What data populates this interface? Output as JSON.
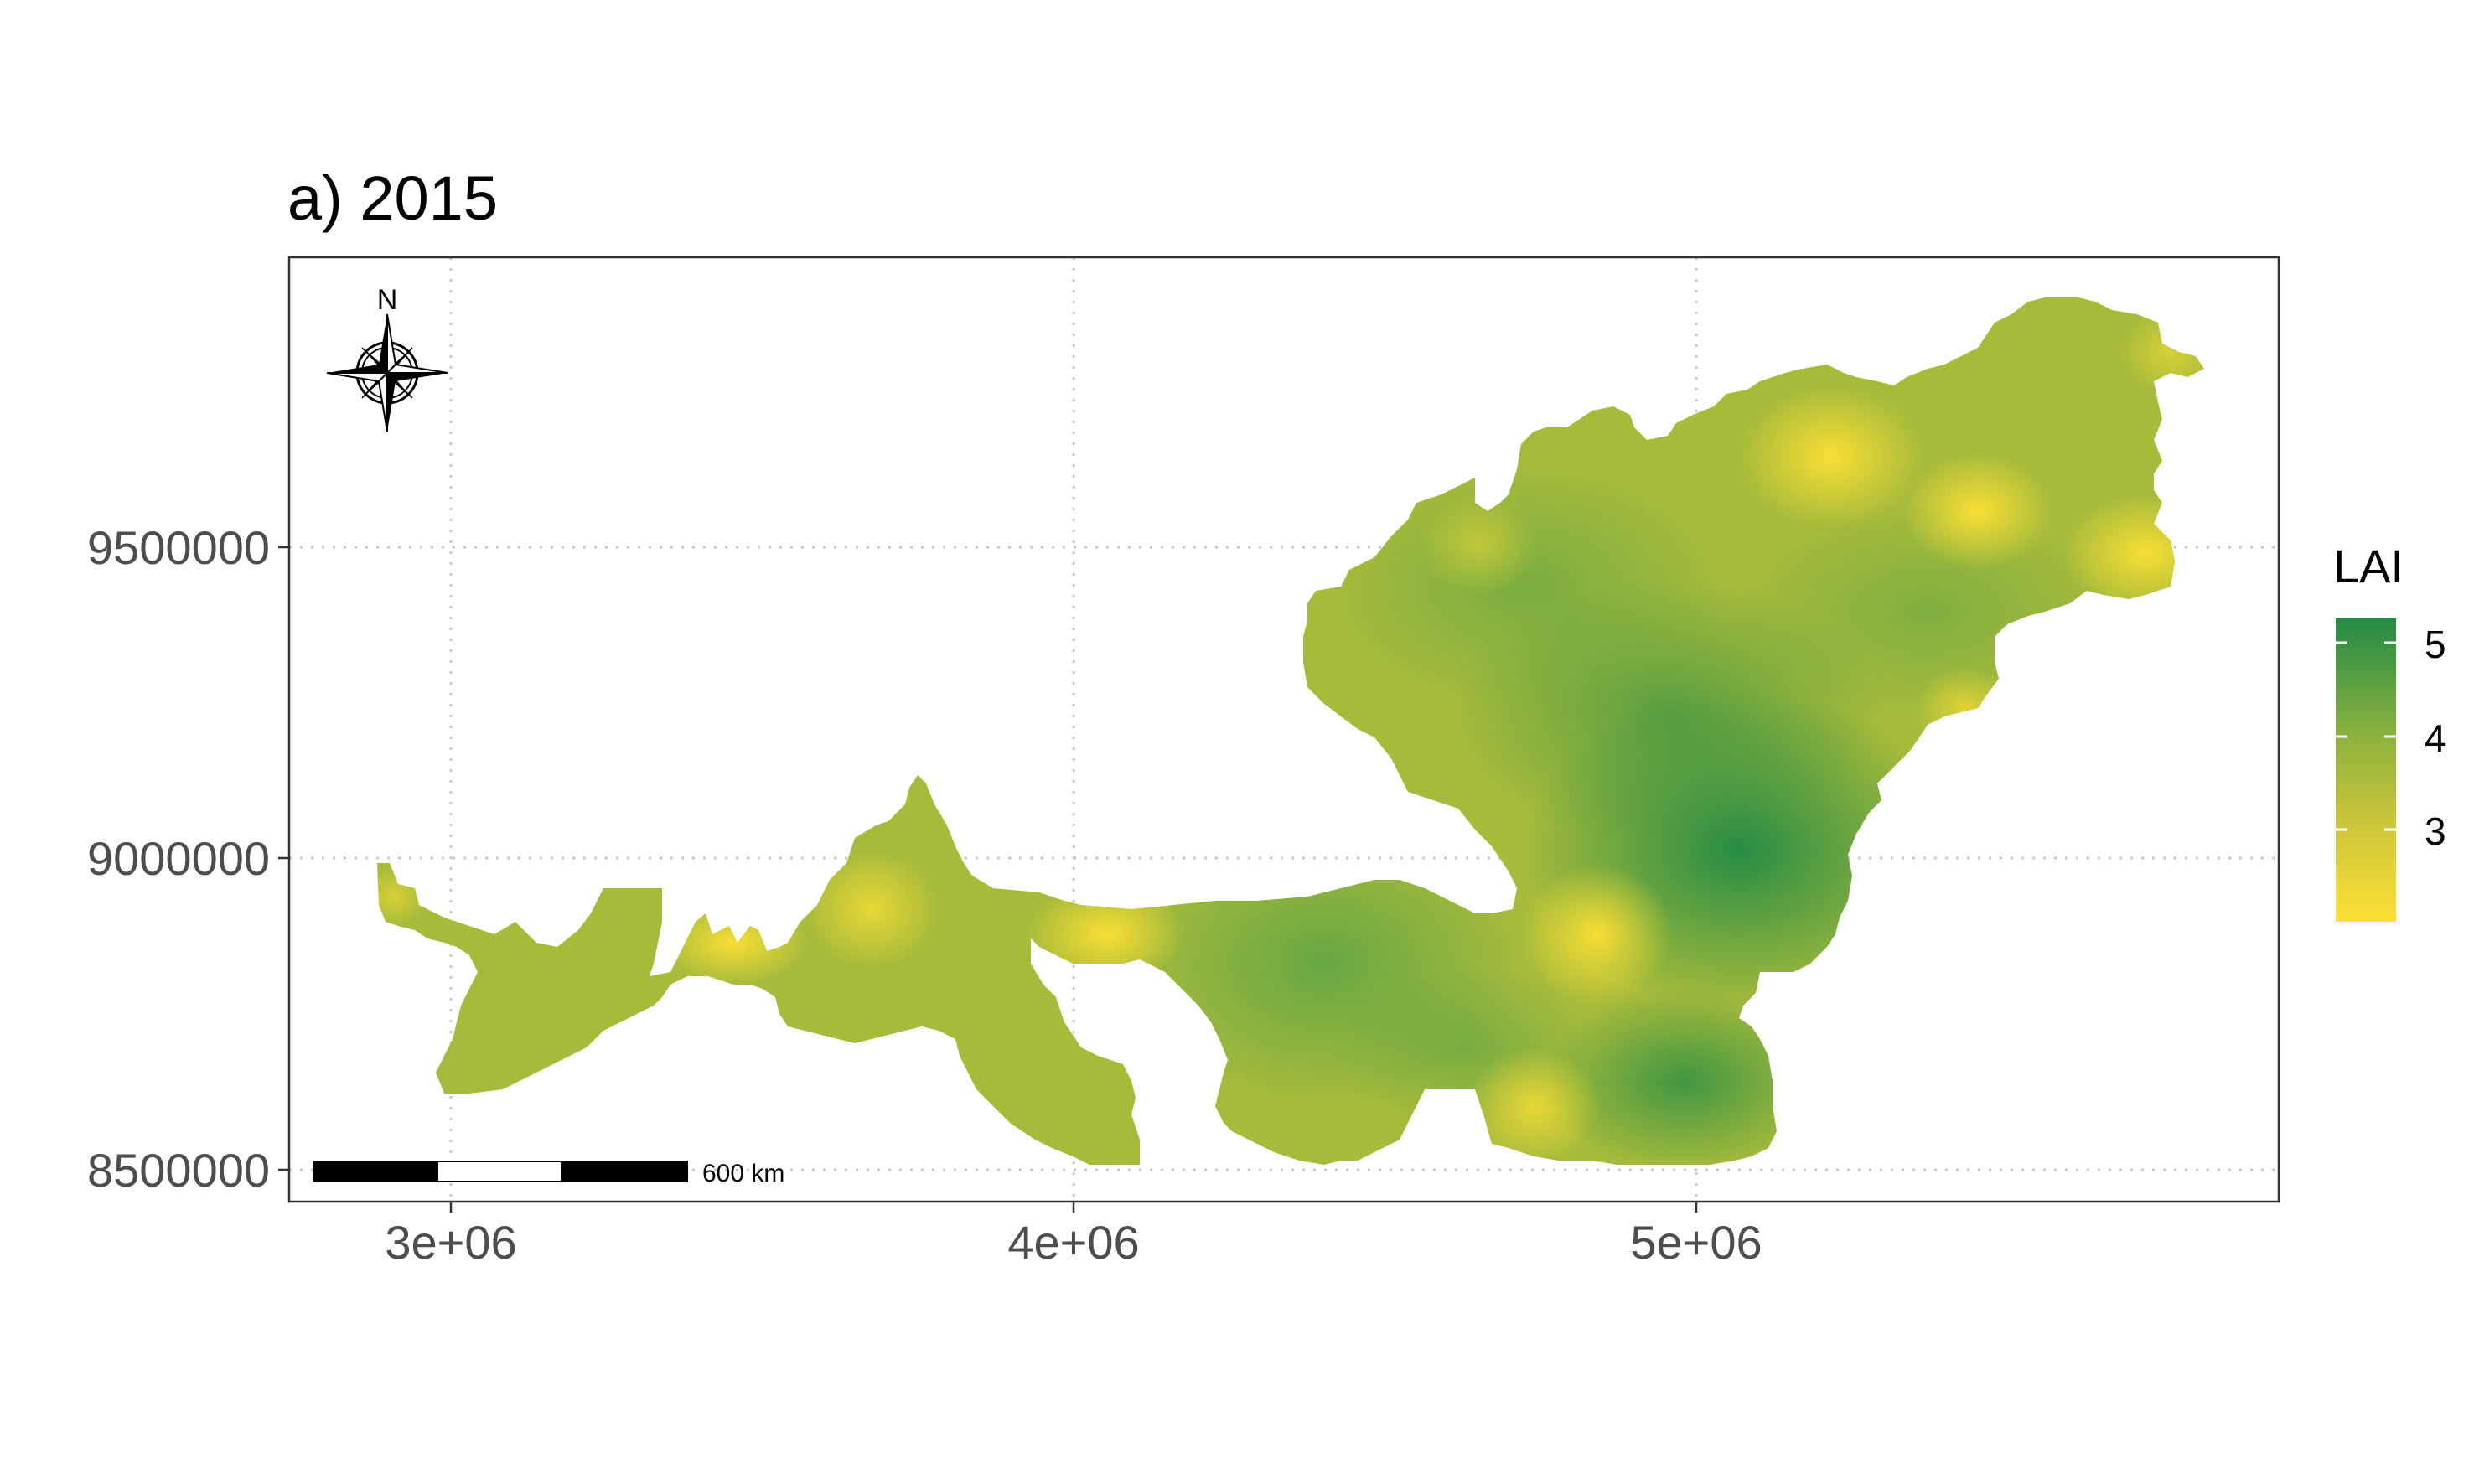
{
  "title": "a) 2015",
  "x_ticks": [
    "3e+06",
    "4e+06",
    "5e+06"
  ],
  "y_ticks": [
    "9500000",
    "9000000",
    "8500000"
  ],
  "legend": {
    "title": "LAI",
    "labels": [
      "5",
      "4",
      "3"
    ],
    "colors": {
      "high": "#238b45",
      "mid": "#9ab83a",
      "low": "#fde034"
    }
  },
  "north_arrow": {
    "label": "N"
  },
  "scale_bar": {
    "label": "600 km"
  },
  "chart_data": {
    "type": "heatmap",
    "title": "a) 2015",
    "xlabel": "",
    "ylabel": "",
    "xlim": [
      2740000,
      5940000
    ],
    "ylim": [
      8450000,
      9945000
    ],
    "x_ticks": [
      3000000,
      4000000,
      5000000
    ],
    "y_ticks": [
      8500000,
      9000000,
      9500000
    ],
    "grid": true,
    "legend": "right",
    "colorbar": {
      "name": "LAI",
      "ticks": [
        3,
        4,
        5
      ],
      "range": [
        2.5,
        5.3
      ]
    }
  }
}
